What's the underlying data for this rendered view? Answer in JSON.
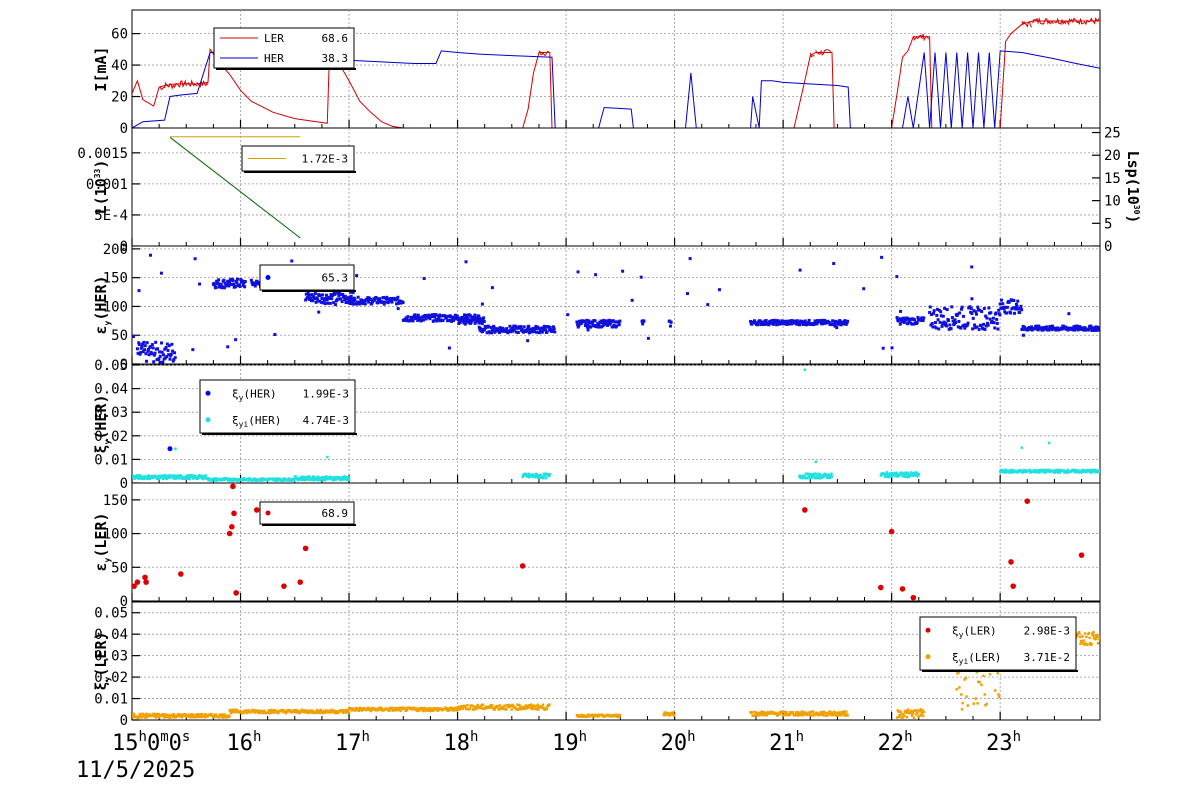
{
  "chart_data": {
    "type": "line",
    "time_axis": {
      "ticks": [
        {
          "main": "15",
          "sup": "h",
          "extra_main": "0",
          "extra_sup": "m",
          "extra2_main": "0",
          "extra2_sup": "s",
          "hour": 15
        },
        {
          "main": "16",
          "sup": "h",
          "hour": 16
        },
        {
          "main": "17",
          "sup": "h",
          "hour": 17
        },
        {
          "main": "18",
          "sup": "h",
          "hour": 18
        },
        {
          "main": "19",
          "sup": "h",
          "hour": 19
        },
        {
          "main": "20",
          "sup": "h",
          "hour": 20
        },
        {
          "main": "21",
          "sup": "h",
          "hour": 21
        },
        {
          "main": "22",
          "sup": "h",
          "hour": 22
        },
        {
          "main": "23",
          "sup": "h",
          "hour": 23
        }
      ],
      "date": "11/5/2025",
      "range": [
        15.0,
        23.92
      ]
    },
    "panels": [
      {
        "id": "current",
        "ylabel": "I[mA]",
        "ylim": [
          0,
          75
        ],
        "ticks": [
          "0",
          "20",
          "40",
          "60"
        ],
        "tick_values": [
          0,
          20,
          40,
          60
        ],
        "legend": [
          {
            "label": "LER",
            "value": "68.6",
            "color": "#d40000"
          },
          {
            "label": "HER",
            "value": "38.3",
            "color": "#0000cc"
          }
        ],
        "series": [
          {
            "name": "LER",
            "color": "#d40000",
            "points": [
              [
                15.0,
                22
              ],
              [
                15.05,
                30
              ],
              [
                15.1,
                18
              ],
              [
                15.2,
                14
              ],
              [
                15.25,
                26
              ],
              [
                15.3,
                27
              ],
              [
                15.4,
                28
              ],
              [
                15.5,
                28
              ],
              [
                15.6,
                28
              ],
              [
                15.7,
                29
              ],
              [
                15.72,
                50
              ],
              [
                15.8,
                42
              ],
              [
                15.9,
                34
              ],
              [
                16.0,
                24
              ],
              [
                16.1,
                17
              ],
              [
                16.3,
                10
              ],
              [
                16.5,
                6
              ],
              [
                16.7,
                4
              ],
              [
                16.8,
                3
              ],
              [
                16.82,
                48
              ],
              [
                16.9,
                42
              ],
              [
                17.0,
                30
              ],
              [
                17.1,
                17
              ],
              [
                17.2,
                10
              ],
              [
                17.3,
                4
              ],
              [
                17.4,
                1
              ],
              [
                17.5,
                0
              ],
              [
                18.6,
                0
              ],
              [
                18.65,
                12
              ],
              [
                18.7,
                35
              ],
              [
                18.75,
                48
              ],
              [
                18.85,
                48
              ],
              [
                18.87,
                0
              ],
              [
                21.1,
                0
              ],
              [
                21.2,
                30
              ],
              [
                21.25,
                46
              ],
              [
                21.3,
                48
              ],
              [
                21.45,
                48
              ],
              [
                21.47,
                0
              ],
              [
                22.0,
                0
              ],
              [
                22.05,
                22
              ],
              [
                22.1,
                45
              ],
              [
                22.15,
                49
              ],
              [
                22.2,
                58
              ],
              [
                22.35,
                58
              ],
              [
                22.37,
                0
              ],
              [
                23.0,
                0
              ],
              [
                23.05,
                55
              ],
              [
                23.1,
                60
              ],
              [
                23.2,
                66
              ],
              [
                23.3,
                68
              ],
              [
                23.5,
                68
              ],
              [
                23.92,
                68
              ]
            ]
          },
          {
            "name": "HER",
            "color": "#0000cc",
            "points": [
              [
                15.0,
                0
              ],
              [
                15.1,
                4
              ],
              [
                15.3,
                5
              ],
              [
                15.35,
                20
              ],
              [
                15.45,
                21
              ],
              [
                15.6,
                22
              ],
              [
                15.72,
                48
              ],
              [
                15.9,
                49
              ],
              [
                16.0,
                48
              ],
              [
                16.3,
                46
              ],
              [
                16.6,
                45
              ],
              [
                16.8,
                44
              ],
              [
                17.0,
                43
              ],
              [
                17.3,
                42
              ],
              [
                17.6,
                41
              ],
              [
                17.8,
                41
              ],
              [
                17.85,
                49
              ],
              [
                18.0,
                48
              ],
              [
                18.2,
                47
              ],
              [
                18.5,
                46
              ],
              [
                18.87,
                45
              ],
              [
                18.9,
                0
              ],
              [
                19.3,
                0
              ],
              [
                19.35,
                13
              ],
              [
                19.6,
                12
              ],
              [
                19.62,
                0
              ],
              [
                20.1,
                0
              ],
              [
                20.15,
                35
              ],
              [
                20.2,
                0
              ],
              [
                20.7,
                0
              ],
              [
                20.72,
                20
              ],
              [
                20.78,
                0
              ],
              [
                20.8,
                30
              ],
              [
                20.9,
                30
              ],
              [
                21.0,
                29
              ],
              [
                21.5,
                27
              ],
              [
                21.6,
                26
              ],
              [
                21.62,
                0
              ],
              [
                22.1,
                0
              ],
              [
                22.15,
                20
              ],
              [
                22.2,
                0
              ],
              [
                22.3,
                48
              ],
              [
                22.35,
                0
              ],
              [
                22.4,
                48
              ],
              [
                22.45,
                0
              ],
              [
                22.5,
                48
              ],
              [
                22.55,
                0
              ],
              [
                22.6,
                48
              ],
              [
                22.65,
                0
              ],
              [
                22.7,
                48
              ],
              [
                22.75,
                0
              ],
              [
                22.8,
                48
              ],
              [
                22.85,
                0
              ],
              [
                22.9,
                48
              ],
              [
                22.95,
                0
              ],
              [
                23.0,
                49
              ],
              [
                23.2,
                48
              ],
              [
                23.5,
                44
              ],
              [
                23.7,
                41
              ],
              [
                23.92,
                38
              ]
            ]
          }
        ]
      },
      {
        "id": "luminosity",
        "ylabel": "L(10",
        "ylabel_sup": "33",
        "ylabel_tail": ")",
        "ylim": [
          0,
          0.0019
        ],
        "ticks": [
          "0",
          "5E-4",
          "0.001",
          "0.0015"
        ],
        "tick_values": [
          0,
          0.0005,
          0.001,
          0.0015
        ],
        "right_label": "Lsp(10",
        "right_label_sup": "30",
        "right_label_tail": ")",
        "right_ylim": [
          0,
          26
        ],
        "right_ticks": [
          "0",
          "5",
          "10",
          "15",
          "20",
          "25"
        ],
        "right_tick_values": [
          0,
          5,
          10,
          15,
          20,
          25
        ],
        "legend": [
          {
            "label": "",
            "value": "1.72E-3",
            "color": "#d4a000"
          }
        ],
        "series": [
          {
            "name": "L",
            "color": "#006600",
            "points": [
              [
                15.35,
                0.00175
              ],
              [
                16.55,
                0.00013
              ]
            ]
          },
          {
            "name": "Lsp",
            "color": "#d4a000",
            "points": [
              [
                15.35,
                0.00176
              ],
              [
                16.55,
                0.00176
              ]
            ]
          }
        ]
      },
      {
        "id": "ey_her",
        "ylabel": "ε",
        "ylabel_sub": "y",
        "ylabel_tail": "(HER)",
        "ylim": [
          0,
          205
        ],
        "ticks": [
          "0",
          "50",
          "100",
          "150",
          "200"
        ],
        "tick_values": [
          0,
          50,
          100,
          150,
          200
        ],
        "legend": [
          {
            "label": "",
            "value": "65.3",
            "color": "#0000ff"
          }
        ],
        "color": "#1010dd"
      },
      {
        "id": "xi_her",
        "ylabel": "ξ",
        "ylabel_sub": "y",
        "ylabel_tail": "(HER)",
        "ylim": [
          0,
          0.05
        ],
        "ticks": [
          "0",
          "0.01",
          "0.02",
          "0.03",
          "0.04",
          "0.05"
        ],
        "tick_values": [
          0,
          0.01,
          0.02,
          0.03,
          0.04,
          0.05
        ],
        "legend": [
          {
            "label": "ξ",
            "sub": "y",
            "tail": "(HER)",
            "value": "1.99E-3",
            "color": "#0000ff"
          },
          {
            "label": "ξ",
            "sub": "yi",
            "tail": "(HER)",
            "value": "4.74E-3",
            "color": "#22e0e0"
          }
        ]
      },
      {
        "id": "ey_ler",
        "ylabel": "ε",
        "ylabel_sub": "y",
        "ylabel_tail": "(LER)",
        "ylim": [
          0,
          175
        ],
        "ticks": [
          "0",
          "50",
          "100",
          "150"
        ],
        "tick_values": [
          0,
          50,
          100,
          150
        ],
        "legend": [
          {
            "label": "",
            "value": "68.9",
            "color": "#dd0000"
          }
        ],
        "points": [
          [
            15.02,
            22
          ],
          [
            15.05,
            28
          ],
          [
            15.12,
            35
          ],
          [
            15.13,
            28
          ],
          [
            15.45,
            40
          ],
          [
            15.9,
            100
          ],
          [
            15.92,
            110
          ],
          [
            15.94,
            130
          ],
          [
            15.93,
            170
          ],
          [
            15.96,
            12
          ],
          [
            16.15,
            135
          ],
          [
            16.4,
            22
          ],
          [
            16.55,
            28
          ],
          [
            16.6,
            78
          ],
          [
            18.6,
            52
          ],
          [
            21.2,
            135
          ],
          [
            21.9,
            20
          ],
          [
            22.0,
            103
          ],
          [
            22.1,
            18
          ],
          [
            22.2,
            5
          ],
          [
            23.1,
            58
          ],
          [
            23.12,
            22
          ],
          [
            23.25,
            148
          ],
          [
            23.75,
            68
          ]
        ]
      },
      {
        "id": "xi_ler",
        "ylabel": "ξ",
        "ylabel_sub": "y",
        "ylabel_tail": "(LER)",
        "ylim": [
          0,
          0.055
        ],
        "ticks": [
          "0",
          "0.01",
          "0.02",
          "0.03",
          "0.04",
          "0.05"
        ],
        "tick_values": [
          0,
          0.01,
          0.02,
          0.03,
          0.04,
          0.05
        ],
        "legend": [
          {
            "label": "ξ",
            "sub": "y",
            "tail": "(LER)",
            "value": "2.98E-3",
            "color": "#dd0000"
          },
          {
            "label": "ξ",
            "sub": "yi",
            "tail": "(LER)",
            "value": "3.71E-2",
            "color": "#f0a000"
          }
        ]
      }
    ]
  }
}
